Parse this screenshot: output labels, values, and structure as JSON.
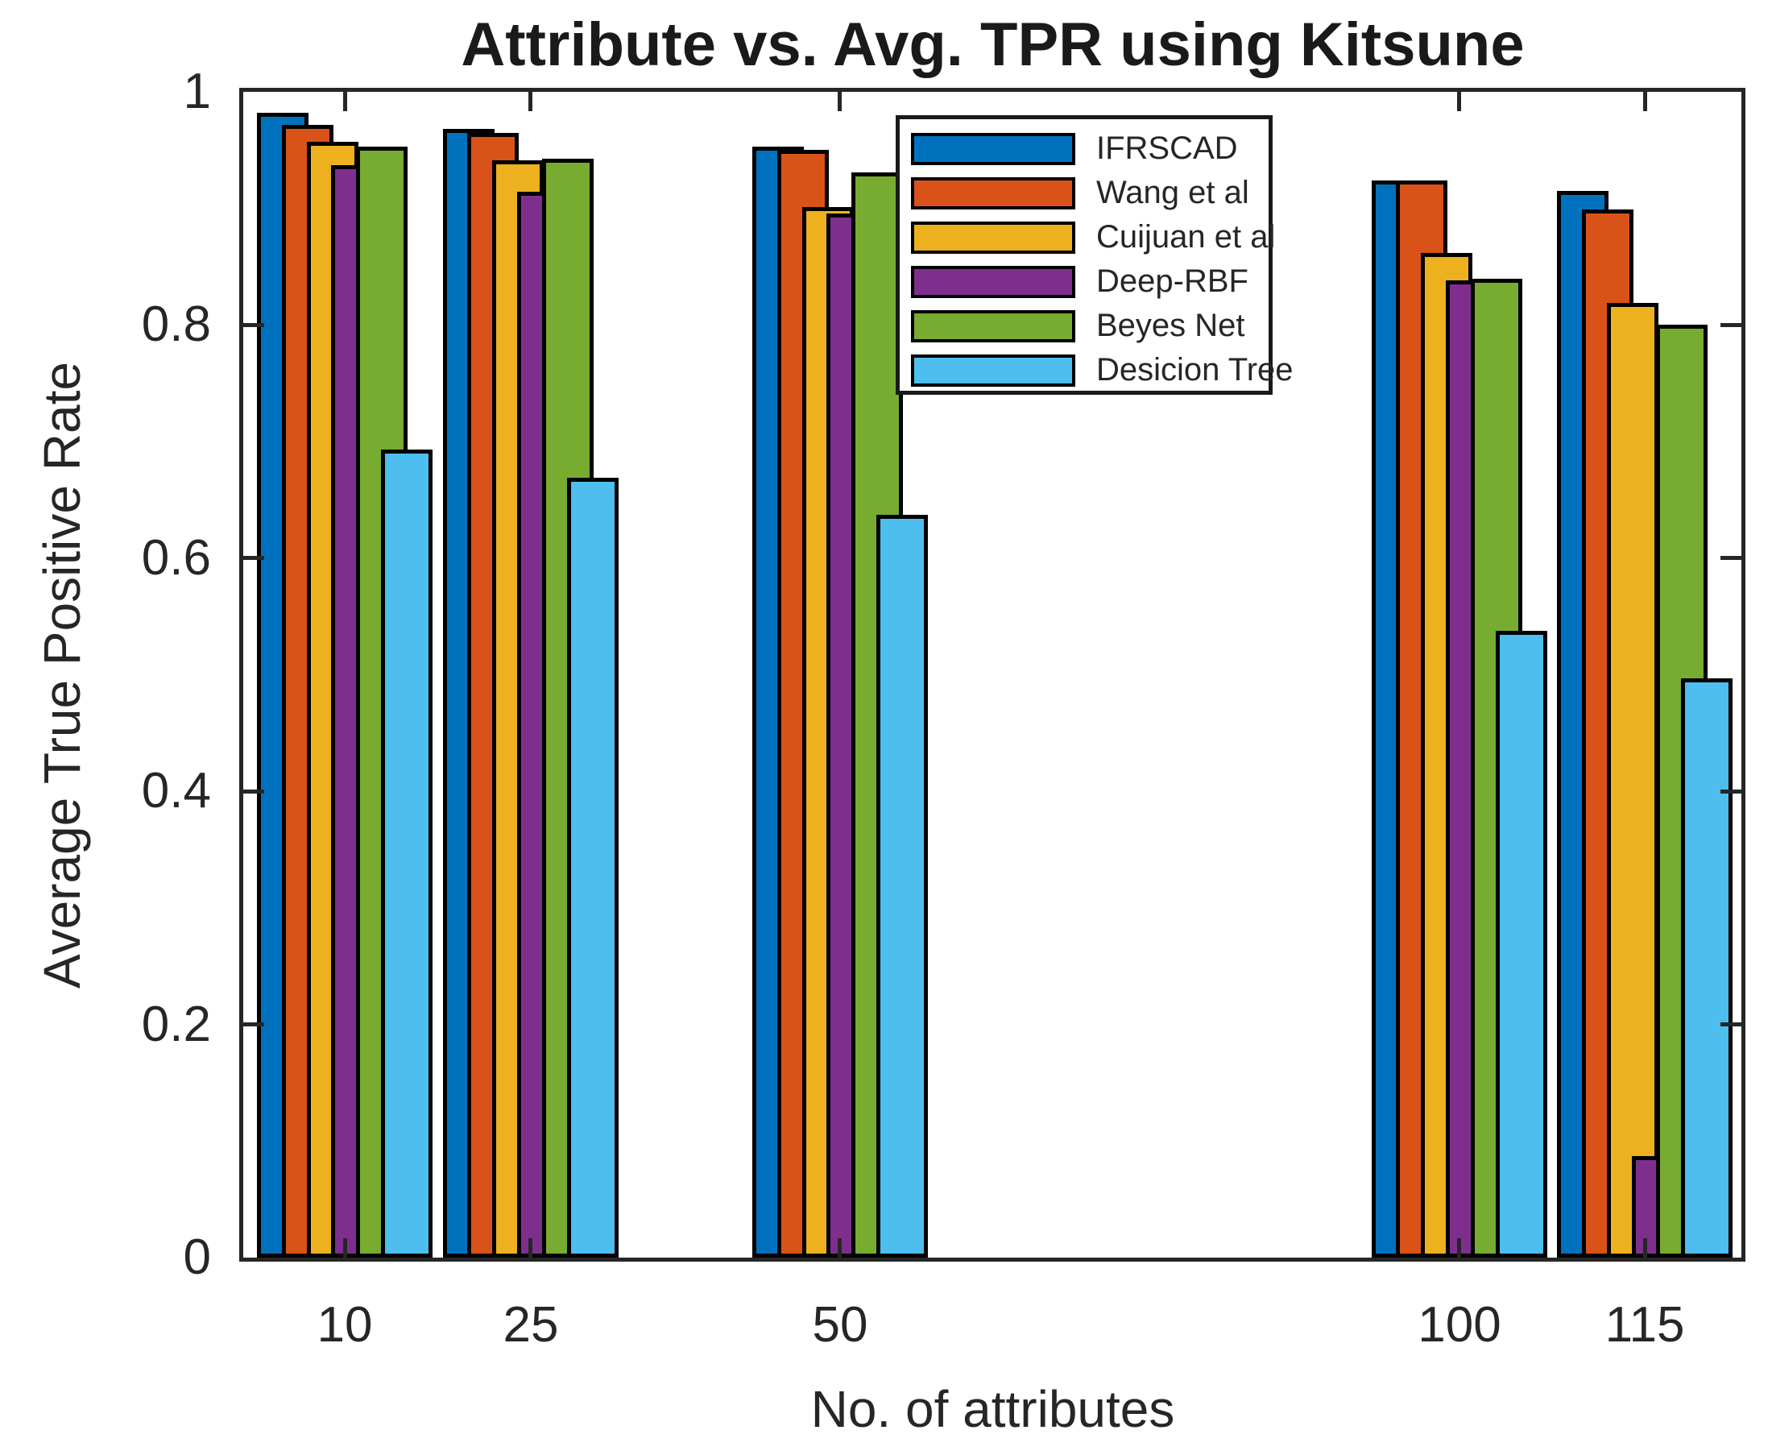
{
  "title": "Attribute vs. Avg. TPR using Kitsune",
  "axes": {
    "xlabel": "No. of attributes",
    "ylabel": "Average True Positive Rate"
  },
  "colors": {
    "background": "#FFFFFF",
    "axis_frame": "#262626",
    "text": "#262626",
    "bar_edge": "#000000"
  },
  "chart_data": {
    "type": "bar",
    "title": "Attribute vs. Avg. TPR using Kitsune",
    "xlabel": "No. of attributes",
    "ylabel": "Average True Positive Rate",
    "categories": [
      10,
      25,
      50,
      100,
      115
    ],
    "x_tick_labels": [
      "10",
      "25",
      "50",
      "100",
      "115"
    ],
    "y_ticks": [
      0,
      0.2,
      0.4,
      0.6,
      0.8,
      1
    ],
    "ylim": [
      0,
      1
    ],
    "xlim": [
      1.8,
      122.8
    ],
    "grid": false,
    "bar_style": "overlapping shingled bars with black edges, later series drawn on top",
    "legend_position": "upper right inside plot",
    "series": [
      {
        "name": "IFRSCAD",
        "color": "#0072BD",
        "values": [
          0.982,
          0.968,
          0.953,
          0.924,
          0.915
        ]
      },
      {
        "name": "Wang et al",
        "color": "#D95319",
        "values": [
          0.972,
          0.965,
          0.95,
          0.924,
          0.899
        ]
      },
      {
        "name": "Cuijuan et al",
        "color": "#EDB120",
        "values": [
          0.957,
          0.941,
          0.901,
          0.862,
          0.819
        ]
      },
      {
        "name": "Deep-RBF",
        "color": "#7E2F8E",
        "values": [
          0.937,
          0.914,
          0.896,
          0.838,
          0.087
        ]
      },
      {
        "name": "Beyes Net",
        "color": "#77AC30",
        "values": [
          0.953,
          0.943,
          0.931,
          0.84,
          0.8
        ]
      },
      {
        "name": "Desicion Tree",
        "color": "#4DBEEE",
        "values": [
          0.693,
          0.669,
          0.637,
          0.538,
          0.497
        ]
      }
    ]
  }
}
